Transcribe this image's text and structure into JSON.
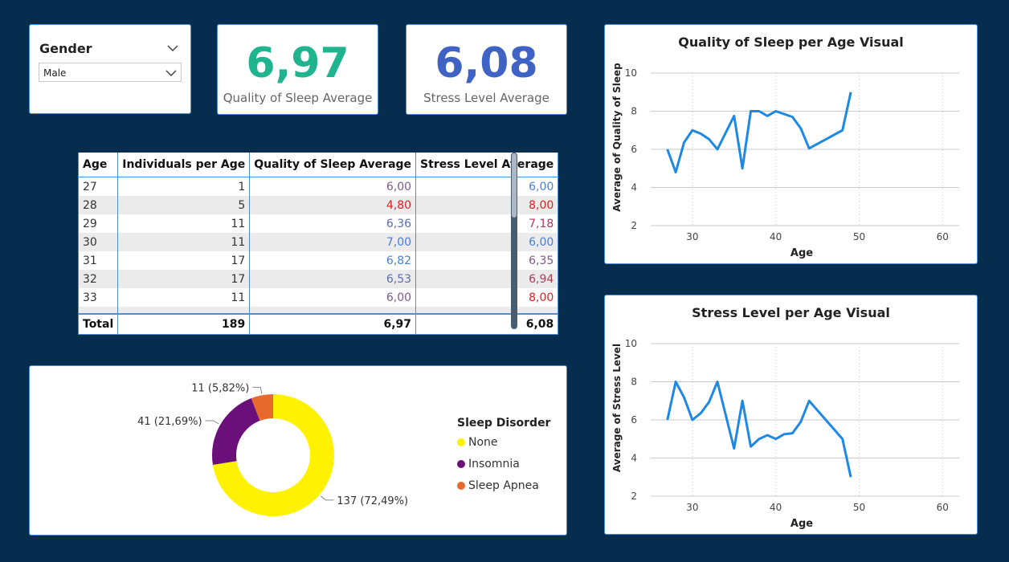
{
  "slicer": {
    "title": "Gender",
    "selected": "Male"
  },
  "kpis": [
    {
      "value": "6,97",
      "label": "Quality of Sleep Average",
      "color": "#1fb38e"
    },
    {
      "value": "6,08",
      "label": "Stress Level Average",
      "color": "#3f63c4"
    }
  ],
  "table": {
    "headers": [
      "Age",
      "Individuals per Age",
      "Quality of Sleep Average",
      "Stress Level Average"
    ],
    "rows": [
      {
        "age": "27",
        "count": "1",
        "quality": "6,00",
        "stress": "6,00",
        "quality_color": "#7b5a8c",
        "stress_color": "#4a7fd6"
      },
      {
        "age": "28",
        "count": "5",
        "quality": "4,80",
        "stress": "8,00",
        "quality_color": "#e02020",
        "stress_color": "#e02020"
      },
      {
        "age": "29",
        "count": "11",
        "quality": "6,36",
        "stress": "7,18",
        "quality_color": "#5b6db0",
        "stress_color": "#b23a5a"
      },
      {
        "age": "30",
        "count": "11",
        "quality": "7,00",
        "stress": "6,00",
        "quality_color": "#4a7fd6",
        "stress_color": "#4a7fd6"
      },
      {
        "age": "31",
        "count": "17",
        "quality": "6,82",
        "stress": "6,35",
        "quality_color": "#4a7fd6",
        "stress_color": "#7b5a8c"
      },
      {
        "age": "32",
        "count": "17",
        "quality": "6,53",
        "stress": "6,94",
        "quality_color": "#5b6db0",
        "stress_color": "#b23a5a"
      },
      {
        "age": "33",
        "count": "11",
        "quality": "6,00",
        "stress": "8,00",
        "quality_color": "#7b5a8c",
        "stress_color": "#e02020"
      }
    ],
    "total": {
      "label": "Total",
      "count": "189",
      "quality": "6,97",
      "stress": "6,08"
    }
  },
  "chart_data": [
    {
      "type": "pie",
      "legend_title": "Sleep Disorder",
      "legend_position": "right",
      "slices": [
        {
          "name": "None",
          "value": 137,
          "label": "137 (72,49%)",
          "color": "#fff200"
        },
        {
          "name": "Insomnia",
          "value": 41,
          "label": "41 (21,69%)",
          "color": "#6b0f7a"
        },
        {
          "name": "Sleep Apnea",
          "value": 11,
          "label": "11 (5,82%)",
          "color": "#e8692c"
        }
      ]
    },
    {
      "type": "line",
      "title": "Quality of Sleep per Age Visual",
      "xlabel": "Age",
      "ylabel": "Average of Quality of Sleep",
      "xlim": [
        25,
        62
      ],
      "ylim": [
        2,
        10
      ],
      "xticks": [
        30,
        40,
        50,
        60
      ],
      "yticks": [
        2,
        4,
        6,
        8,
        10
      ],
      "color": "#1e88e5",
      "x": [
        27,
        28,
        29,
        30,
        31,
        32,
        33,
        35,
        36,
        37,
        38,
        39,
        40,
        42,
        43,
        44,
        48,
        49
      ],
      "y": [
        6.0,
        4.8,
        6.36,
        7.0,
        6.82,
        6.53,
        6.0,
        7.75,
        5.0,
        8.0,
        8.0,
        7.75,
        8.0,
        7.7,
        7.1,
        6.05,
        7.0,
        9.0
      ]
    },
    {
      "type": "line",
      "title": "Stress Level per Age Visual",
      "xlabel": "Age",
      "ylabel": "Average of Stress Level",
      "xlim": [
        25,
        62
      ],
      "ylim": [
        2,
        10
      ],
      "xticks": [
        30,
        40,
        50,
        60
      ],
      "yticks": [
        2,
        4,
        6,
        8,
        10
      ],
      "color": "#1e88e5",
      "x": [
        27,
        28,
        29,
        30,
        31,
        32,
        33,
        35,
        36,
        37,
        38,
        39,
        40,
        41,
        42,
        43,
        44,
        48,
        49
      ],
      "y": [
        6.0,
        8.0,
        7.18,
        6.0,
        6.35,
        6.94,
        8.0,
        4.5,
        7.0,
        4.6,
        5.0,
        5.2,
        5.0,
        5.25,
        5.3,
        5.9,
        7.0,
        5.0,
        3.0
      ]
    }
  ]
}
